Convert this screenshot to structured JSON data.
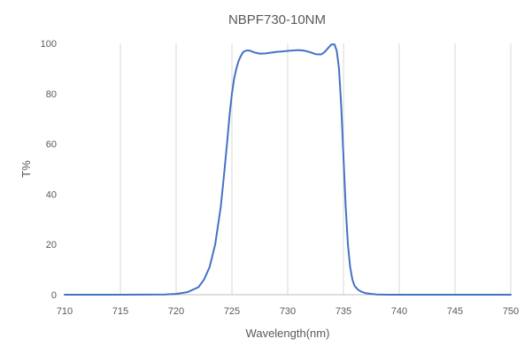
{
  "chart_data": {
    "type": "line",
    "title": "NBPF730-10NM",
    "xlabel": "Wavelength(nm)",
    "ylabel": "T%",
    "xlim": [
      710,
      750
    ],
    "ylim": [
      0,
      100
    ],
    "x_ticks": [
      "710",
      "715",
      "720",
      "725",
      "730",
      "735",
      "740",
      "745",
      "750"
    ],
    "y_ticks": [
      "0",
      "20",
      "40",
      "60",
      "80",
      "100"
    ],
    "grid": "vertical",
    "legend": "none",
    "series": [
      {
        "color": "#4472c4",
        "x": [
          710,
          715,
          719,
          720,
          721,
          722,
          722.5,
          723,
          723.5,
          724,
          724.3,
          724.6,
          724.8,
          725,
          725.2,
          725.4,
          725.6,
          725.8,
          726,
          726.2,
          726.4,
          726.6,
          727,
          727.5,
          728,
          728.5,
          729,
          729.5,
          730,
          730.5,
          731,
          731.5,
          732,
          732.5,
          733,
          733.3,
          733.6,
          733.9,
          734.2,
          734.4,
          734.6,
          734.8,
          735,
          735.2,
          735.4,
          735.6,
          735.8,
          736,
          736.3,
          736.6,
          737,
          737.5,
          738,
          739,
          740,
          745,
          750
        ],
        "y": [
          0,
          0,
          0.1,
          0.3,
          1,
          3,
          6,
          11,
          20,
          35,
          48,
          62,
          72,
          80,
          86,
          90,
          93,
          95,
          96.5,
          97,
          97.2,
          97.1,
          96.4,
          95.9,
          96,
          96.3,
          96.6,
          96.8,
          97,
          97.2,
          97.3,
          97.1,
          96.5,
          95.7,
          95.6,
          96.5,
          98,
          99.5,
          99.6,
          97,
          90,
          75,
          55,
          35,
          20,
          11,
          6,
          3.5,
          2,
          1.2,
          0.6,
          0.3,
          0.1,
          0,
          0,
          0,
          0
        ]
      }
    ]
  }
}
